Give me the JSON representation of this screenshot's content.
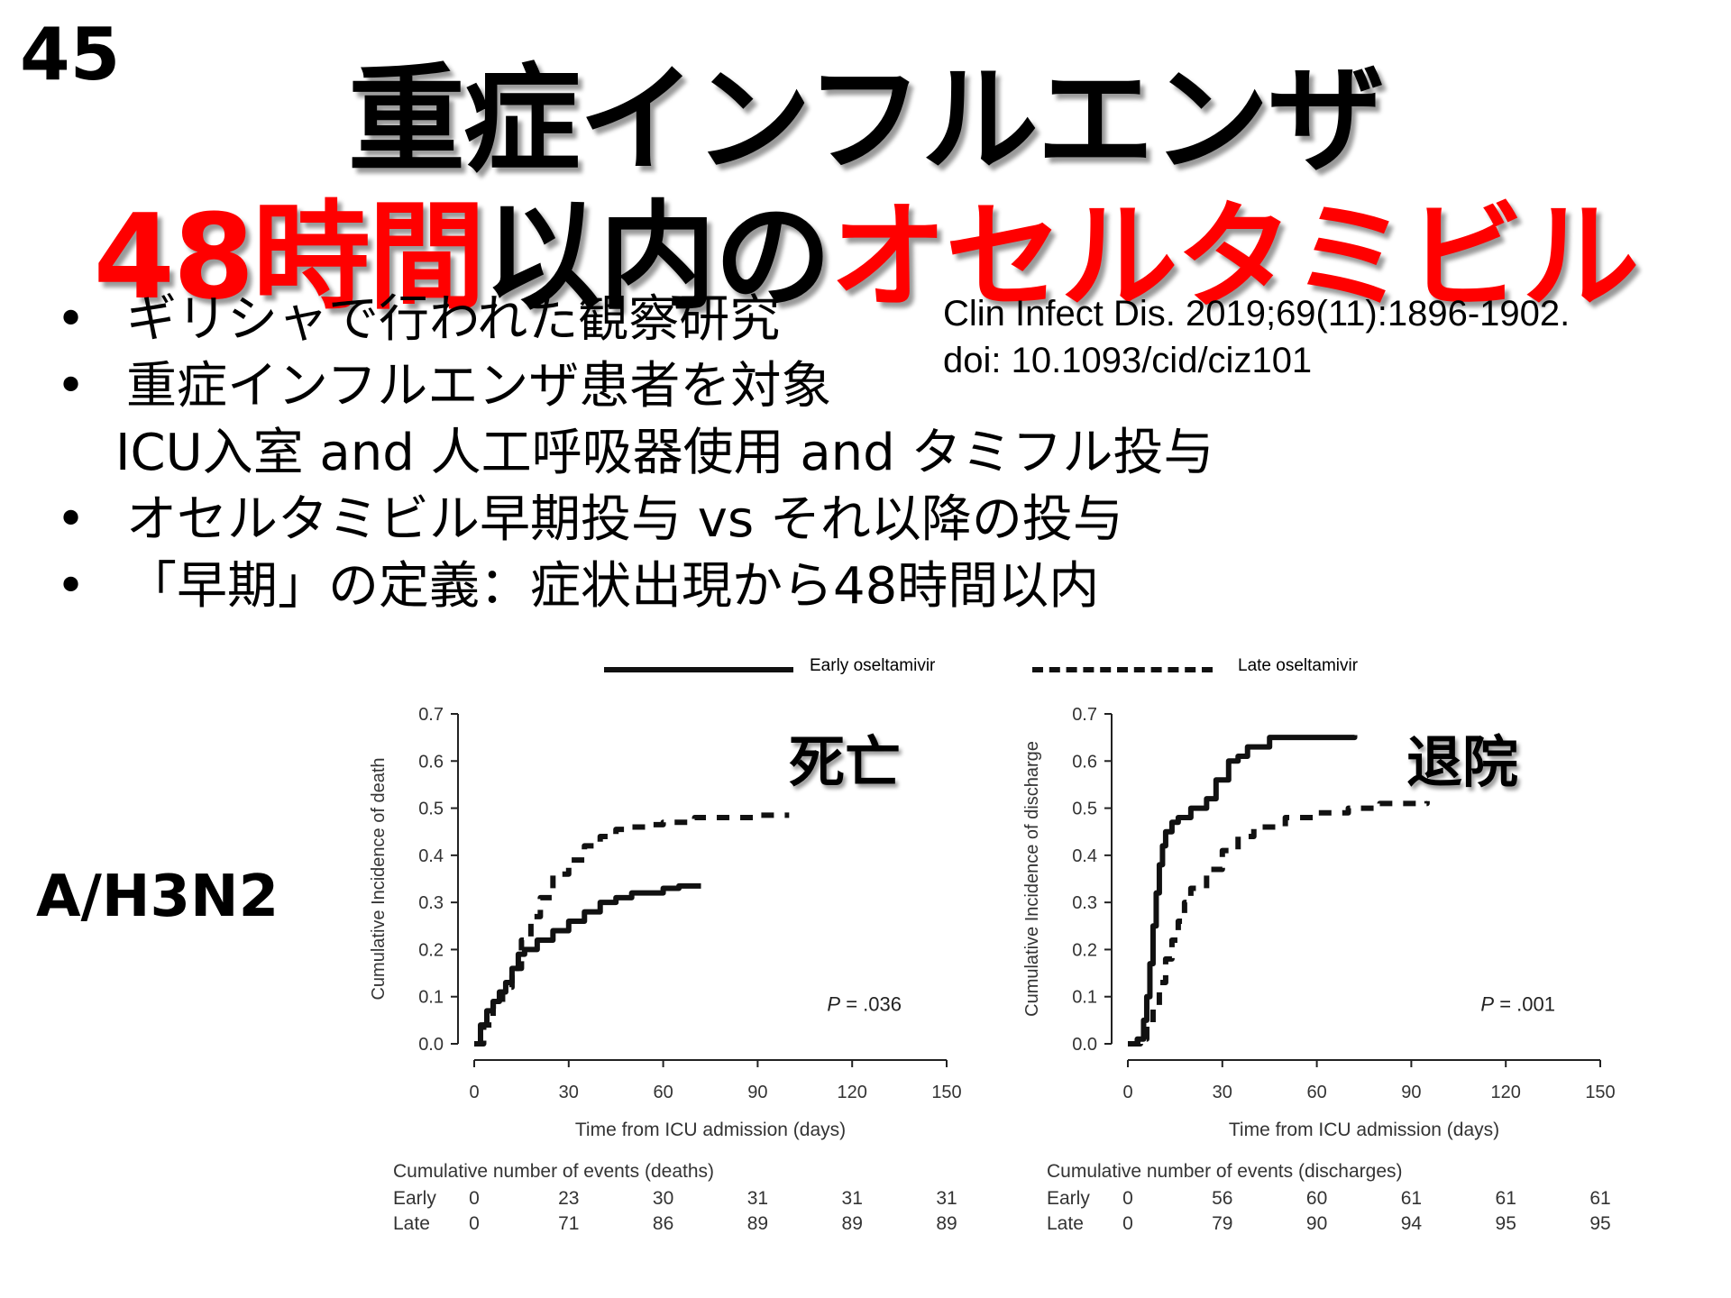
{
  "slide": {
    "number": "45",
    "title_line1": "重症インフルエンザ",
    "title_line2_part1": "48時間",
    "title_line2_part2": "以内の",
    "title_line2_part3": "オセルタミビル",
    "bullets": [
      "ギリシャで行われた観察研究",
      "重症インフルエンザ患者を対象",
      "オセルタミビル早期投与 vs それ以降の投与",
      "「早期」の定義：症状出現から48時間以内"
    ],
    "bullet2_continuation": "ICU入室 and 人工呼吸器使用 and タミフル投与",
    "citation_line1": "Clin Infect Dis. 2019;69(11):1896-1902.",
    "citation_line2": "doi: 10.1093/cid/ciz101",
    "subtype_label": "A/H3N2",
    "colors": {
      "accent_red": "#ff0000",
      "text": "#000000"
    }
  },
  "legend": {
    "early": "Early oseltamivir",
    "late": "Late oseltamivir"
  },
  "chart_data": [
    {
      "type": "line",
      "annotation": "死亡",
      "xlabel": "Time from ICU admission (days)",
      "ylabel": "Cumulative Incidence of death",
      "xlim": [
        0,
        150
      ],
      "ylim": [
        0,
        0.7
      ],
      "xticks": [
        0,
        30,
        60,
        90,
        120,
        150
      ],
      "yticks": [
        0,
        0.1,
        0.2,
        0.3,
        0.4,
        0.5,
        0.6,
        0.7
      ],
      "p_value_label": "P",
      "p_value": "= .036",
      "series": [
        {
          "name": "Early oseltamivir",
          "style": "solid",
          "x": [
            0,
            2,
            4,
            6,
            8,
            10,
            12,
            14,
            16,
            20,
            25,
            30,
            35,
            40,
            45,
            50,
            55,
            60,
            65,
            72
          ],
          "y": [
            0,
            0.04,
            0.07,
            0.09,
            0.11,
            0.13,
            0.16,
            0.19,
            0.2,
            0.22,
            0.24,
            0.26,
            0.28,
            0.3,
            0.31,
            0.32,
            0.32,
            0.33,
            0.335,
            0.335
          ]
        },
        {
          "name": "Late oseltamivir",
          "style": "dashed",
          "x": [
            0,
            3,
            6,
            9,
            12,
            15,
            18,
            21,
            25,
            30,
            35,
            40,
            45,
            50,
            55,
            60,
            70,
            80,
            90,
            100
          ],
          "y": [
            0,
            0.04,
            0.08,
            0.12,
            0.16,
            0.22,
            0.27,
            0.31,
            0.36,
            0.39,
            0.42,
            0.44,
            0.455,
            0.46,
            0.465,
            0.47,
            0.48,
            0.48,
            0.485,
            0.485
          ]
        }
      ],
      "risk_table": {
        "title": "Cumulative number of events (deaths)",
        "rows": [
          {
            "label": "Early",
            "values": [
              "0",
              "23",
              "30",
              "31",
              "31",
              "31"
            ]
          },
          {
            "label": "Late",
            "values": [
              "0",
              "71",
              "86",
              "89",
              "89",
              "89"
            ]
          }
        ]
      }
    },
    {
      "type": "line",
      "annotation": "退院",
      "xlabel": "Time from ICU admission (days)",
      "ylabel": "Cumulative Incidence of discharge",
      "xlim": [
        0,
        150
      ],
      "ylim": [
        0,
        0.7
      ],
      "xticks": [
        0,
        30,
        60,
        90,
        120,
        150
      ],
      "yticks": [
        0,
        0.1,
        0.2,
        0.3,
        0.4,
        0.5,
        0.6,
        0.7
      ],
      "p_value_label": "P",
      "p_value": "= .001",
      "series": [
        {
          "name": "Early oseltamivir",
          "style": "solid",
          "x": [
            0,
            3,
            5,
            6,
            7,
            8,
            9,
            10,
            11,
            12,
            14,
            16,
            20,
            25,
            28,
            32,
            35,
            38,
            45,
            55,
            72
          ],
          "y": [
            0,
            0.01,
            0.05,
            0.1,
            0.17,
            0.25,
            0.32,
            0.38,
            0.42,
            0.45,
            0.47,
            0.48,
            0.5,
            0.52,
            0.56,
            0.6,
            0.61,
            0.63,
            0.65,
            0.65,
            0.655
          ]
        },
        {
          "name": "Late oseltamivir",
          "style": "dashed",
          "x": [
            0,
            4,
            6,
            8,
            10,
            12,
            14,
            16,
            18,
            20,
            25,
            30,
            35,
            40,
            50,
            60,
            70,
            80,
            95
          ],
          "y": [
            0,
            0.01,
            0.04,
            0.08,
            0.13,
            0.18,
            0.22,
            0.26,
            0.3,
            0.33,
            0.37,
            0.41,
            0.44,
            0.46,
            0.48,
            0.49,
            0.5,
            0.51,
            0.515
          ]
        }
      ],
      "risk_table": {
        "title": "Cumulative number of events (discharges)",
        "rows": [
          {
            "label": "Early",
            "values": [
              "0",
              "56",
              "60",
              "61",
              "61",
              "61"
            ]
          },
          {
            "label": "Late",
            "values": [
              "0",
              "79",
              "90",
              "94",
              "95",
              "95"
            ]
          }
        ]
      }
    }
  ]
}
